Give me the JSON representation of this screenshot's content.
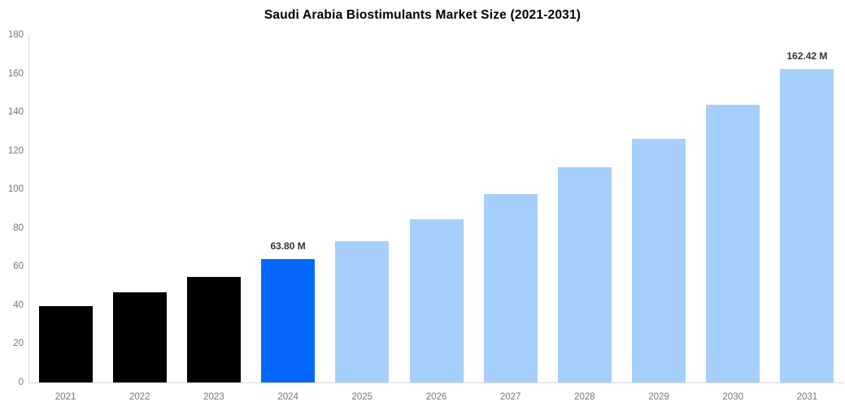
{
  "chart_data": {
    "type": "bar",
    "title": "Saudi Arabia Biostimulants Market Size (2021-2031)",
    "unit": "M",
    "categories": [
      "2021",
      "2022",
      "2023",
      "2024",
      "2025",
      "2026",
      "2027",
      "2028",
      "2029",
      "2030",
      "2031"
    ],
    "values": [
      39.7,
      46.7,
      54.7,
      63.8,
      73.3,
      84.5,
      97.6,
      111.4,
      126.3,
      143.7,
      162.42
    ],
    "bar_labels": [
      "",
      "",
      "",
      "63.80 M",
      "",
      "",
      "",
      "",
      "",
      "",
      "162.42 M"
    ],
    "bar_styles": [
      "historical",
      "historical",
      "historical",
      "highlight",
      "forecast",
      "forecast",
      "forecast",
      "forecast",
      "forecast",
      "forecast",
      "forecast"
    ],
    "colors": {
      "historical": "#000000",
      "highlight": "#0667fe",
      "forecast": "#a6cffb"
    },
    "xlabel": "",
    "ylabel": "",
    "ylim": [
      0,
      180
    ],
    "ytick_step": 20,
    "yticks": [
      "0",
      "20",
      "40",
      "60",
      "80",
      "100",
      "120",
      "140",
      "160",
      "180"
    ],
    "grid": false,
    "legend": "none",
    "axis_color": "#d9d9d9",
    "tick_label_color": "#757575",
    "bar_label_color": "#333333"
  }
}
